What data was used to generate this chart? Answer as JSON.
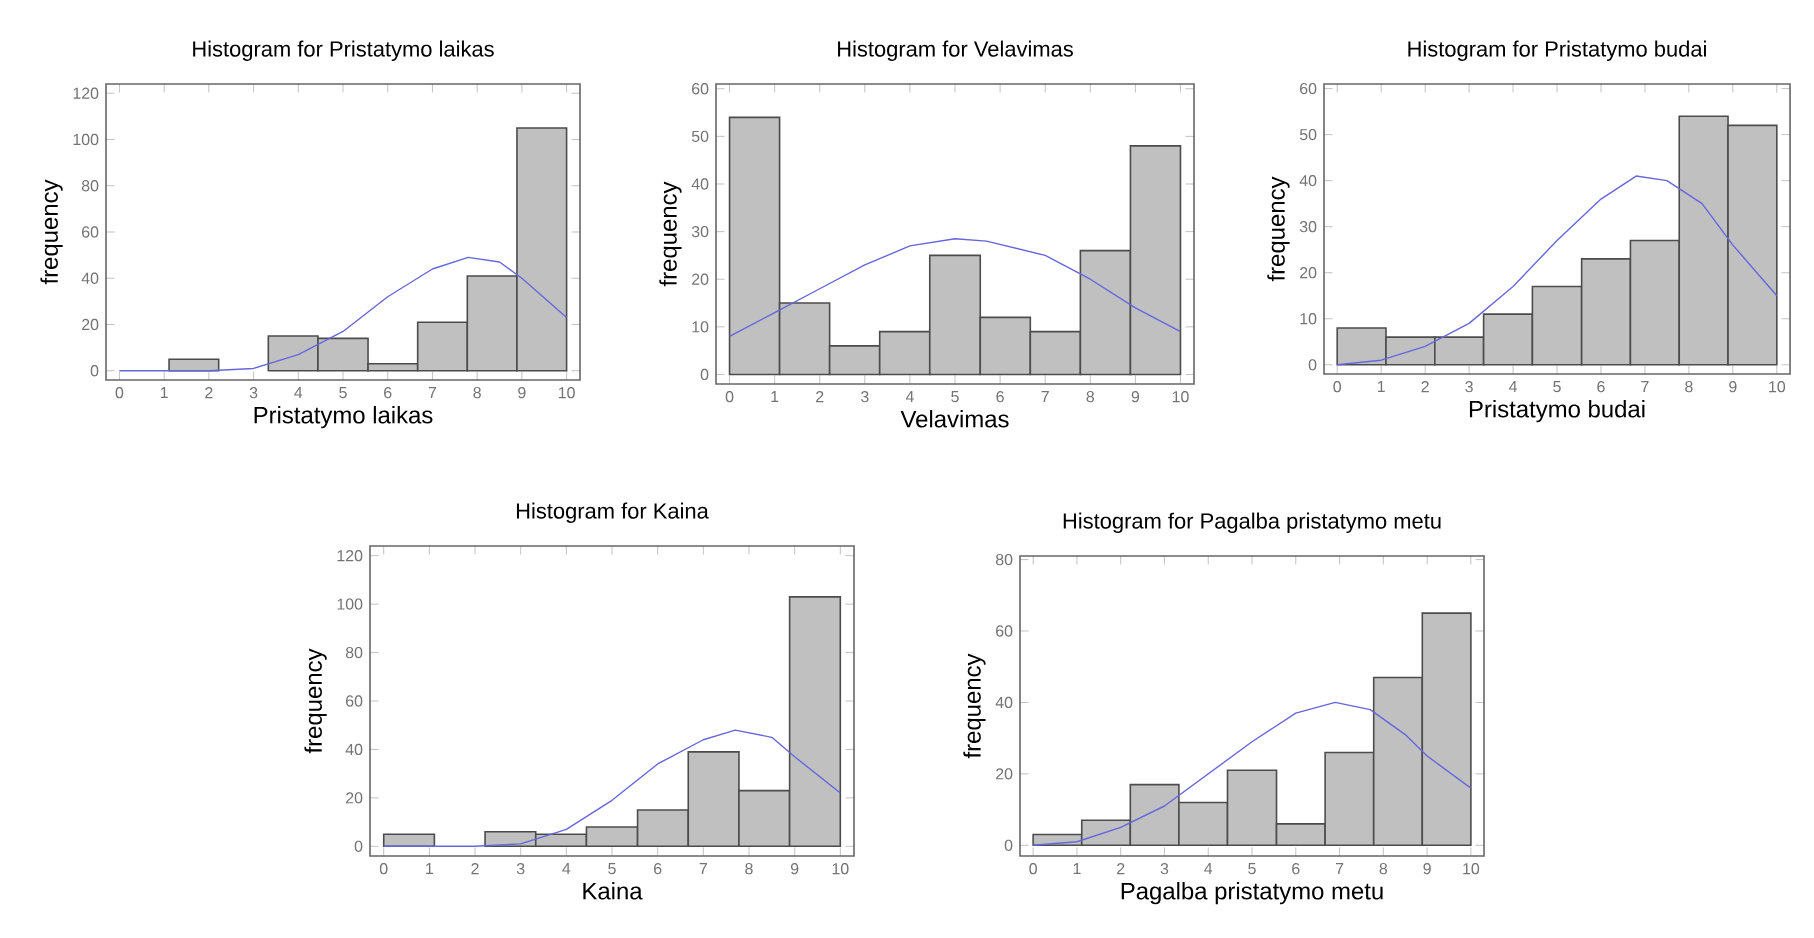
{
  "chart_data": [
    {
      "type": "histogram",
      "title": "Histogram for Pristatymo laikas",
      "xlabel": "Pristatymo laikas",
      "ylabel": "frequency",
      "bins": [
        0,
        1.11,
        2.22,
        3.33,
        4.44,
        5.56,
        6.67,
        7.78,
        8.89,
        10
      ],
      "xlim": [
        -0.3,
        10.3
      ],
      "ylim": [
        -4,
        124
      ],
      "xticks": [
        0,
        1,
        2,
        3,
        4,
        5,
        6,
        7,
        8,
        9,
        10
      ],
      "yticks": [
        0,
        20,
        40,
        60,
        80,
        100,
        120
      ],
      "series": [
        {
          "type": "histogram",
          "color": "#c0c0c0",
          "values": [
            0,
            5,
            0,
            15,
            14,
            3,
            21,
            41,
            105
          ]
        },
        {
          "type": "line",
          "color": "#6666dd",
          "x": [
            0,
            1,
            2,
            3,
            4,
            5,
            6,
            7,
            7.8,
            8.5,
            9,
            10
          ],
          "values": [
            0,
            0,
            0,
            1,
            7,
            17,
            32,
            44,
            49,
            47,
            40,
            23
          ]
        }
      ]
    },
    {
      "type": "histogram",
      "title": "Histogram for Velavimas",
      "xlabel": "Velavimas",
      "ylabel": "frequency",
      "bins": [
        0,
        1.11,
        2.22,
        3.33,
        4.44,
        5.56,
        6.67,
        7.78,
        8.89,
        10
      ],
      "xlim": [
        -0.3,
        10.3
      ],
      "ylim": [
        -2,
        61
      ],
      "xticks": [
        0,
        1,
        2,
        3,
        4,
        5,
        6,
        7,
        8,
        9,
        10
      ],
      "yticks": [
        0,
        10,
        20,
        30,
        40,
        50,
        60
      ],
      "series": [
        {
          "type": "histogram",
          "color": "#c0c0c0",
          "values": [
            54,
            15,
            6,
            9,
            25,
            12,
            9,
            26,
            48
          ]
        },
        {
          "type": "line",
          "color": "#6666dd",
          "x": [
            0,
            1,
            2,
            3,
            4,
            5,
            5.7,
            7,
            8,
            9,
            10
          ],
          "values": [
            8,
            13,
            18,
            23,
            27,
            28.5,
            28,
            25,
            20,
            14,
            9
          ]
        }
      ]
    },
    {
      "type": "histogram",
      "title": "Histogram for Pristatymo budai",
      "xlabel": "Pristatymo budai",
      "ylabel": "frequency",
      "bins": [
        0,
        1.11,
        2.22,
        3.33,
        4.44,
        5.56,
        6.67,
        7.78,
        8.89,
        10
      ],
      "xlim": [
        -0.3,
        10.3
      ],
      "ylim": [
        -2,
        61
      ],
      "xticks": [
        0,
        1,
        2,
        3,
        4,
        5,
        6,
        7,
        8,
        9,
        10
      ],
      "yticks": [
        0,
        10,
        20,
        30,
        40,
        50,
        60
      ],
      "series": [
        {
          "type": "histogram",
          "color": "#c0c0c0",
          "values": [
            8,
            6,
            6,
            11,
            17,
            23,
            27,
            54,
            52
          ]
        },
        {
          "type": "line",
          "color": "#6666dd",
          "x": [
            0,
            1,
            2,
            3,
            4,
            5,
            6,
            6.8,
            7.5,
            8.3,
            9,
            10
          ],
          "values": [
            0,
            1,
            4,
            9,
            17,
            27,
            36,
            41,
            40,
            35,
            26,
            15
          ]
        }
      ]
    },
    {
      "type": "histogram",
      "title": "Histogram for Kaina",
      "xlabel": "Kaina",
      "ylabel": "frequency",
      "bins": [
        0,
        1.11,
        2.22,
        3.33,
        4.44,
        5.56,
        6.67,
        7.78,
        8.89,
        10
      ],
      "xlim": [
        -0.3,
        10.3
      ],
      "ylim": [
        -4,
        124
      ],
      "xticks": [
        0,
        1,
        2,
        3,
        4,
        5,
        6,
        7,
        8,
        9,
        10
      ],
      "yticks": [
        0,
        20,
        40,
        60,
        80,
        100,
        120
      ],
      "series": [
        {
          "type": "histogram",
          "color": "#c0c0c0",
          "values": [
            5,
            0,
            6,
            5,
            8,
            15,
            39,
            23,
            103
          ]
        },
        {
          "type": "line",
          "color": "#6666dd",
          "x": [
            0,
            1,
            2,
            3,
            4,
            5,
            6,
            7,
            7.7,
            8.5,
            9,
            10
          ],
          "values": [
            0,
            0,
            0,
            1,
            7,
            19,
            34,
            44,
            48,
            45,
            37,
            22
          ]
        }
      ]
    },
    {
      "type": "histogram",
      "title": "Histogram for Pagalba pristatymo metu",
      "xlabel": "Pagalba pristatymo metu",
      "ylabel": "frequency",
      "bins": [
        0,
        1.11,
        2.22,
        3.33,
        4.44,
        5.56,
        6.67,
        7.78,
        8.89,
        10
      ],
      "xlim": [
        -0.3,
        10.3
      ],
      "ylim": [
        -3,
        81
      ],
      "xticks": [
        0,
        1,
        2,
        3,
        4,
        5,
        6,
        7,
        8,
        9,
        10
      ],
      "yticks": [
        0,
        20,
        40,
        60,
        80
      ],
      "series": [
        {
          "type": "histogram",
          "color": "#c0c0c0",
          "values": [
            3,
            7,
            17,
            12,
            21,
            6,
            26,
            47,
            65
          ]
        },
        {
          "type": "line",
          "color": "#6666dd",
          "x": [
            0,
            1,
            2,
            3,
            4,
            5,
            6,
            6.9,
            7.7,
            8.5,
            9,
            10
          ],
          "values": [
            0,
            1,
            5,
            11,
            20,
            29,
            37,
            40,
            38,
            31,
            25,
            16
          ]
        }
      ]
    }
  ]
}
